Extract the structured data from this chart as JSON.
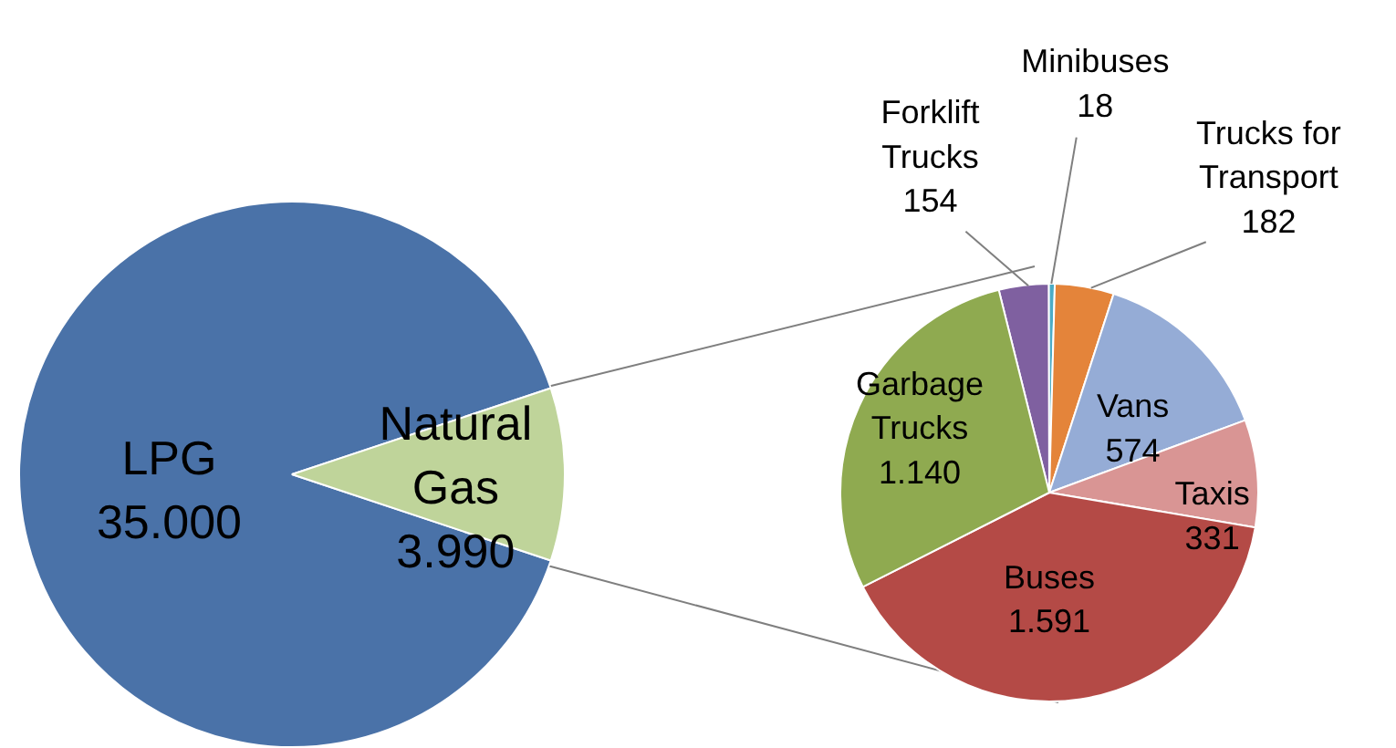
{
  "chart_data": [
    {
      "type": "pie",
      "categories": [
        "LPG",
        "Natural Gas"
      ],
      "values": [
        35000,
        3990
      ],
      "value_labels": [
        "35.000",
        "3.990"
      ],
      "colors": [
        "#4a72a8",
        "#bfd49a"
      ]
    },
    {
      "type": "pie",
      "categories": [
        "Forklift Trucks",
        "Minibuses",
        "Trucks for Transport",
        "Vans",
        "Taxis",
        "Buses",
        "Garbage Trucks"
      ],
      "values": [
        154,
        18,
        182,
        574,
        331,
        1591,
        1140
      ],
      "value_labels": [
        "154",
        "18",
        "182",
        "574",
        "331",
        "1.591",
        "1.140"
      ],
      "colors": [
        "#7f60a0",
        "#4bacc6",
        "#e4843a",
        "#95acd6",
        "#d99594",
        "#b44a46",
        "#8faa50"
      ]
    }
  ]
}
